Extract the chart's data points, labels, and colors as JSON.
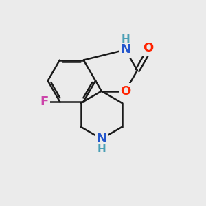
{
  "background_color": "#ebebeb",
  "bond_color": "#1a1a1a",
  "bond_width": 1.8,
  "atom_colors": {
    "N": "#2255cc",
    "O": "#ff2200",
    "F": "#cc44aa",
    "H": "#4a9fb5"
  },
  "font_size_atoms": 13,
  "font_size_H": 11
}
